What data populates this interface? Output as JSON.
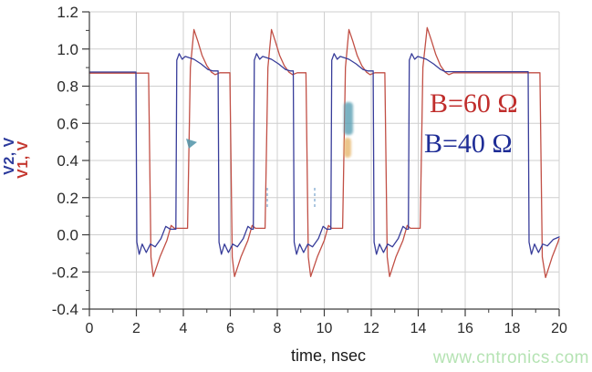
{
  "chart_data": {
    "type": "line",
    "title": "",
    "xlabel": "time, nsec",
    "ylabel_left": [
      {
        "text": "V2, V",
        "color": "#2c3a9c"
      },
      {
        "text": "V1, V",
        "color": "#c4372f"
      }
    ],
    "x_axis": {
      "min": 0,
      "max": 20,
      "major_step": 2,
      "minor_step": 1,
      "tick_labels": [
        "0",
        "2",
        "4",
        "6",
        "8",
        "10",
        "12",
        "14",
        "16",
        "18",
        "20"
      ]
    },
    "y_axis": {
      "min": -0.4,
      "max": 1.2,
      "major_step": 0.2,
      "minor_step": 0.1,
      "tick_labels": [
        "1.2",
        "1.0",
        "0.8",
        "0.6",
        "0.4",
        "0.2",
        "0.0",
        "-0.2",
        "-0.4"
      ]
    },
    "grid": true,
    "grid_color": "#cfcfcf",
    "axis_color": "#3c3c3c",
    "tick_label_color": "#2a2a2a",
    "legend": {
      "position": "inside-right",
      "items": [
        {
          "label": "B=60 Ω",
          "color": "#c02e2c"
        },
        {
          "label": "B=40 Ω",
          "color": "#1f2d96"
        }
      ]
    },
    "series": [
      {
        "name": "V1 (B=60 Ω)",
        "color": "#c14f45",
        "points": [
          [
            0,
            0.87
          ],
          [
            2.52,
            0.87
          ],
          [
            2.62,
            -0.12
          ],
          [
            2.72,
            -0.225
          ],
          [
            3.0,
            -0.12
          ],
          [
            3.3,
            -0.03
          ],
          [
            3.48,
            0.05
          ],
          [
            3.62,
            0.035
          ],
          [
            4.18,
            0.035
          ],
          [
            4.3,
            0.9
          ],
          [
            4.45,
            1.105
          ],
          [
            4.62,
            1.04
          ],
          [
            4.8,
            0.965
          ],
          [
            5.0,
            0.91
          ],
          [
            5.2,
            0.875
          ],
          [
            5.35,
            0.862
          ],
          [
            5.55,
            0.872
          ],
          [
            5.98,
            0.872
          ],
          [
            6.08,
            -0.12
          ],
          [
            6.18,
            -0.225
          ],
          [
            6.45,
            -0.12
          ],
          [
            6.75,
            -0.03
          ],
          [
            6.93,
            0.05
          ],
          [
            7.07,
            0.035
          ],
          [
            7.48,
            0.035
          ],
          [
            7.6,
            0.9
          ],
          [
            7.75,
            1.105
          ],
          [
            7.92,
            1.04
          ],
          [
            8.1,
            0.965
          ],
          [
            8.3,
            0.91
          ],
          [
            8.5,
            0.875
          ],
          [
            8.65,
            0.862
          ],
          [
            8.85,
            0.872
          ],
          [
            9.22,
            0.872
          ],
          [
            9.32,
            -0.12
          ],
          [
            9.42,
            -0.225
          ],
          [
            9.7,
            -0.12
          ],
          [
            10.0,
            -0.03
          ],
          [
            10.18,
            0.05
          ],
          [
            10.32,
            0.035
          ],
          [
            10.78,
            0.035
          ],
          [
            10.9,
            0.9
          ],
          [
            11.05,
            1.105
          ],
          [
            11.22,
            1.04
          ],
          [
            11.4,
            0.965
          ],
          [
            11.6,
            0.91
          ],
          [
            11.8,
            0.875
          ],
          [
            11.95,
            0.862
          ],
          [
            12.15,
            0.872
          ],
          [
            12.58,
            0.872
          ],
          [
            12.68,
            -0.12
          ],
          [
            12.78,
            -0.225
          ],
          [
            13.05,
            -0.12
          ],
          [
            13.35,
            -0.03
          ],
          [
            13.53,
            0.05
          ],
          [
            13.67,
            0.035
          ],
          [
            14.08,
            0.035
          ],
          [
            14.2,
            0.9
          ],
          [
            14.38,
            1.115
          ],
          [
            14.55,
            1.05
          ],
          [
            14.75,
            0.97
          ],
          [
            14.95,
            0.91
          ],
          [
            15.15,
            0.875
          ],
          [
            15.3,
            0.862
          ],
          [
            15.5,
            0.872
          ],
          [
            19.18,
            0.872
          ],
          [
            19.28,
            -0.12
          ],
          [
            19.42,
            -0.23
          ],
          [
            19.7,
            -0.12
          ],
          [
            19.95,
            -0.04
          ],
          [
            20,
            -0.02
          ]
        ]
      },
      {
        "name": "V2 (B=40 Ω)",
        "color": "#383d9a",
        "points": [
          [
            0,
            0.876
          ],
          [
            1.98,
            0.876
          ],
          [
            2.02,
            -0.04
          ],
          [
            2.12,
            -0.105
          ],
          [
            2.25,
            -0.05
          ],
          [
            2.42,
            -0.095
          ],
          [
            2.6,
            -0.05
          ],
          [
            2.8,
            -0.065
          ],
          [
            3.05,
            -0.02
          ],
          [
            3.25,
            0.045
          ],
          [
            3.45,
            0.03
          ],
          [
            3.68,
            0.03
          ],
          [
            3.72,
            0.94
          ],
          [
            3.82,
            0.975
          ],
          [
            3.95,
            0.945
          ],
          [
            4.08,
            0.96
          ],
          [
            4.45,
            0.945
          ],
          [
            4.75,
            0.92
          ],
          [
            5.05,
            0.89
          ],
          [
            5.25,
            0.882
          ],
          [
            5.48,
            0.882
          ],
          [
            5.52,
            -0.04
          ],
          [
            5.62,
            -0.105
          ],
          [
            5.75,
            -0.05
          ],
          [
            5.92,
            -0.095
          ],
          [
            6.1,
            -0.05
          ],
          [
            6.3,
            -0.065
          ],
          [
            6.55,
            -0.02
          ],
          [
            6.75,
            0.045
          ],
          [
            6.9,
            0.03
          ],
          [
            6.98,
            0.03
          ],
          [
            7.02,
            0.94
          ],
          [
            7.12,
            0.975
          ],
          [
            7.25,
            0.945
          ],
          [
            7.38,
            0.96
          ],
          [
            7.75,
            0.945
          ],
          [
            8.05,
            0.92
          ],
          [
            8.35,
            0.89
          ],
          [
            8.55,
            0.882
          ],
          [
            8.68,
            0.882
          ],
          [
            8.72,
            -0.04
          ],
          [
            8.82,
            -0.105
          ],
          [
            8.95,
            -0.05
          ],
          [
            9.12,
            -0.095
          ],
          [
            9.3,
            -0.05
          ],
          [
            9.5,
            -0.065
          ],
          [
            9.75,
            -0.02
          ],
          [
            9.95,
            0.045
          ],
          [
            10.1,
            0.03
          ],
          [
            10.28,
            0.03
          ],
          [
            10.32,
            0.94
          ],
          [
            10.42,
            0.975
          ],
          [
            10.55,
            0.945
          ],
          [
            10.68,
            0.96
          ],
          [
            11.05,
            0.945
          ],
          [
            11.35,
            0.92
          ],
          [
            11.65,
            0.89
          ],
          [
            11.85,
            0.882
          ],
          [
            12.08,
            0.882
          ],
          [
            12.12,
            -0.04
          ],
          [
            12.22,
            -0.105
          ],
          [
            12.35,
            -0.05
          ],
          [
            12.52,
            -0.095
          ],
          [
            12.7,
            -0.05
          ],
          [
            12.9,
            -0.065
          ],
          [
            13.15,
            -0.02
          ],
          [
            13.35,
            0.045
          ],
          [
            13.5,
            0.03
          ],
          [
            13.58,
            0.03
          ],
          [
            13.62,
            0.94
          ],
          [
            13.72,
            0.975
          ],
          [
            13.85,
            0.945
          ],
          [
            13.98,
            0.96
          ],
          [
            14.35,
            0.945
          ],
          [
            14.65,
            0.92
          ],
          [
            14.95,
            0.89
          ],
          [
            15.15,
            0.878
          ],
          [
            18.68,
            0.878
          ],
          [
            18.72,
            -0.04
          ],
          [
            18.82,
            -0.105
          ],
          [
            18.95,
            -0.05
          ],
          [
            19.12,
            -0.095
          ],
          [
            19.3,
            -0.05
          ],
          [
            19.5,
            -0.06
          ],
          [
            19.75,
            -0.025
          ],
          [
            20,
            -0.012
          ]
        ]
      }
    ]
  },
  "watermark": {
    "text": "www.cntronics.com",
    "color": "#b5e3b3"
  }
}
